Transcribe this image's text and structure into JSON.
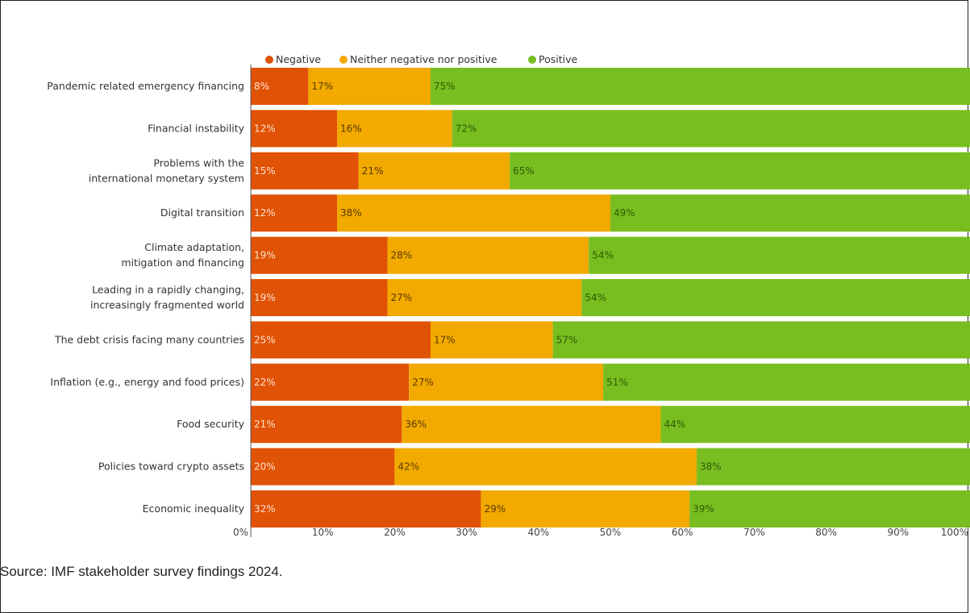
{
  "colors": {
    "negative": "#E05206",
    "neutral": "#F2A900",
    "positive": "#78BE21"
  },
  "chart_data": {
    "type": "bar",
    "orientation": "horizontal-stacked-100",
    "categories": [
      "Pandemic related emergency financing",
      "Financial instability",
      "Problems with the international monetary system",
      "Digital transition",
      "Climate adaptation, mitigation and financing",
      "Leading in a rapidly changing, increasingly fragmented world",
      "The debt crisis facing many countries",
      "Inflation (e.g., energy and food prices)",
      "Food security",
      "Policies toward crypto assets",
      "Economic inequality"
    ],
    "category_lines": [
      [
        "Pandemic related emergency financing"
      ],
      [
        "Financial instability"
      ],
      [
        "Problems with the",
        "international monetary system"
      ],
      [
        "Digital transition"
      ],
      [
        "Climate adaptation,",
        "mitigation and financing"
      ],
      [
        "Leading in a rapidly changing,",
        "increasingly fragmented world"
      ],
      [
        "The debt crisis facing many countries"
      ],
      [
        "Inflation (e.g., energy and food prices)"
      ],
      [
        "Food security"
      ],
      [
        "Policies toward crypto assets"
      ],
      [
        "Economic inequality"
      ]
    ],
    "series": [
      {
        "name": "Negative",
        "values": [
          8,
          12,
          15,
          12,
          19,
          19,
          25,
          22,
          21,
          20,
          32
        ]
      },
      {
        "name": "Neither negative nor positive",
        "values": [
          17,
          16,
          21,
          38,
          28,
          27,
          17,
          27,
          36,
          42,
          29
        ]
      },
      {
        "name": "Positive",
        "values": [
          75,
          72,
          65,
          49,
          54,
          54,
          57,
          51,
          44,
          38,
          39
        ]
      }
    ],
    "xlim": [
      0,
      100
    ],
    "xticks": [
      "0%",
      "10%",
      "20%",
      "30%",
      "40%",
      "50%",
      "60%",
      "70%",
      "80%",
      "90%",
      "100%"
    ],
    "legend_position": "top",
    "grid": false
  },
  "source_text": "Source:  IMF stakeholder survey findings 2024."
}
